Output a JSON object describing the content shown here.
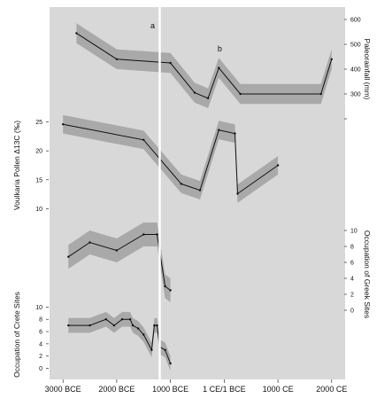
{
  "chart_data": {
    "type": "line",
    "x_axis": {
      "ticks": [
        {
          "label": "3000 BCE",
          "value": -3000
        },
        {
          "label": "2000 BCE",
          "value": -2000
        },
        {
          "label": "1000 BCE",
          "value": -1000
        },
        {
          "label": "1 CE/1 BCE",
          "value": 0
        },
        {
          "label": "1000 CE",
          "value": 1000
        },
        {
          "label": "2000 CE",
          "value": 2000
        }
      ],
      "range": [
        -3250,
        2250
      ]
    },
    "markers": [
      {
        "label": "a",
        "x": -1200
      },
      {
        "label": "b",
        "x": 50
      }
    ],
    "panels": [
      {
        "id": "paleorainfall",
        "ylabel": "Paleorainfall (mm)",
        "yaxis_side": "right",
        "ylim": [
          200,
          600
        ],
        "yticks": [
          200,
          300,
          400,
          500,
          600
        ],
        "tick_labels_shown": [
          300,
          400,
          500,
          600
        ],
        "points": [
          [
            -2750,
            545
          ],
          [
            -2000,
            440
          ],
          [
            -1000,
            425
          ],
          [
            -550,
            305
          ],
          [
            -300,
            283
          ],
          [
            -100,
            405
          ],
          [
            300,
            300
          ],
          [
            1800,
            300
          ],
          [
            2000,
            440
          ]
        ],
        "band_halfwidth": 40
      },
      {
        "id": "pollen",
        "ylabel": "Voulkaria Pollen Δ13C (‰)",
        "yaxis_side": "left",
        "ylim": [
          7,
          28
        ],
        "yticks": [
          10,
          15,
          20,
          25
        ],
        "points": [
          [
            -3000,
            24.6
          ],
          [
            -1500,
            21.9
          ],
          [
            -800,
            14.3
          ],
          [
            -450,
            13.2
          ],
          [
            -100,
            23.6
          ],
          [
            200,
            23.0
          ],
          [
            250,
            12.6
          ],
          [
            1000,
            17.5
          ]
        ],
        "band_halfwidth": 1.6
      },
      {
        "id": "greek-sites",
        "ylabel": "Occupation of Greek Sites",
        "yaxis_side": "right",
        "ylim": [
          -3,
          12
        ],
        "yticks": [
          0,
          2,
          4,
          6,
          8,
          10
        ],
        "points": [
          [
            -2900,
            6.7
          ],
          [
            -2500,
            8.5
          ],
          [
            -2000,
            7.5
          ],
          [
            -1500,
            9.5
          ],
          [
            -1250,
            9.5
          ],
          [
            -1100,
            3.0
          ],
          [
            -1000,
            2.5
          ]
        ],
        "band_halfwidth": 1.5
      },
      {
        "id": "crete-sites",
        "ylabel": "Occupation of Crete Sites",
        "yaxis_side": "left",
        "ylim": [
          -0.5,
          11.5
        ],
        "yticks": [
          0,
          2,
          4,
          6,
          8,
          10
        ],
        "points": [
          [
            -2900,
            7
          ],
          [
            -2500,
            7
          ],
          [
            -2200,
            8
          ],
          [
            -2050,
            7
          ],
          [
            -1900,
            8
          ],
          [
            -1750,
            8
          ],
          [
            -1700,
            7
          ],
          [
            -1600,
            6.5
          ],
          [
            -1500,
            5.5
          ],
          [
            -1350,
            3
          ],
          [
            -1300,
            7
          ],
          [
            -1250,
            7
          ],
          [
            -1200,
            3.5
          ],
          [
            -1100,
            3
          ],
          [
            -1000,
            0.8
          ]
        ],
        "band_halfwidth": 1.2
      }
    ]
  }
}
